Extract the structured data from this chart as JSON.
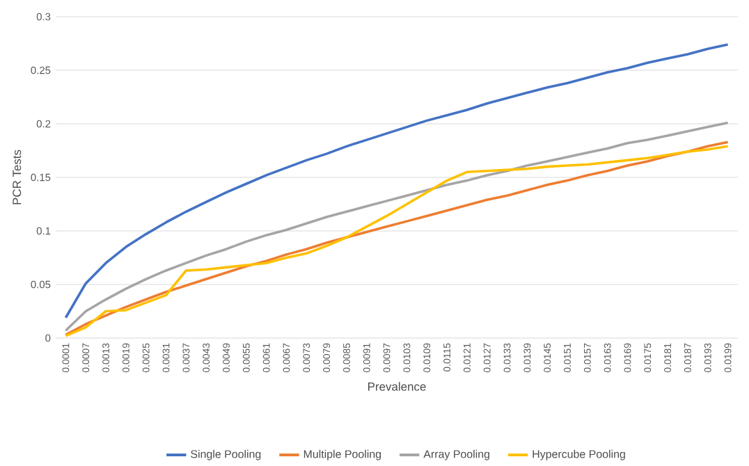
{
  "chart_data": {
    "type": "line",
    "xlabel": "Prevalence",
    "ylabel": "PCR Tests",
    "categories": [
      "0.0001",
      "0.0007",
      "0.0013",
      "0.0019",
      "0.0025",
      "0.0031",
      "0.0037",
      "0.0043",
      "0.0049",
      "0.0055",
      "0.0061",
      "0.0067",
      "0.0073",
      "0.0079",
      "0.0085",
      "0.0091",
      "0.0097",
      "0.0103",
      "0.0109",
      "0.0115",
      "0.0121",
      "0.0127",
      "0.0133",
      "0.0139",
      "0.0145",
      "0.0151",
      "0.0157",
      "0.0163",
      "0.0169",
      "0.0175",
      "0.0181",
      "0.0187",
      "0.0193",
      "0.0199"
    ],
    "series": [
      {
        "name": "Single Pooling",
        "color": "#4472c4",
        "values": [
          0.019,
          0.051,
          0.07,
          0.085,
          0.097,
          0.108,
          0.118,
          0.127,
          0.136,
          0.144,
          0.152,
          0.159,
          0.166,
          0.172,
          0.179,
          0.185,
          0.191,
          0.197,
          0.203,
          0.208,
          0.213,
          0.219,
          0.224,
          0.229,
          0.234,
          0.238,
          0.243,
          0.248,
          0.252,
          0.257,
          0.261,
          0.265,
          0.27,
          0.274
        ]
      },
      {
        "name": "Multiple Pooling",
        "color": "#ed7d31",
        "values": [
          0.003,
          0.013,
          0.021,
          0.029,
          0.036,
          0.043,
          0.049,
          0.055,
          0.061,
          0.067,
          0.072,
          0.078,
          0.083,
          0.089,
          0.094,
          0.099,
          0.104,
          0.109,
          0.114,
          0.119,
          0.124,
          0.129,
          0.133,
          0.138,
          0.143,
          0.147,
          0.152,
          0.156,
          0.161,
          0.165,
          0.17,
          0.174,
          0.179,
          0.183
        ]
      },
      {
        "name": "Array Pooling",
        "color": "#a5a5a5",
        "values": [
          0.007,
          0.025,
          0.036,
          0.046,
          0.055,
          0.063,
          0.07,
          0.077,
          0.083,
          0.09,
          0.096,
          0.101,
          0.107,
          0.113,
          0.118,
          0.123,
          0.128,
          0.133,
          0.138,
          0.143,
          0.147,
          0.152,
          0.156,
          0.161,
          0.165,
          0.169,
          0.173,
          0.177,
          0.182,
          0.185,
          0.189,
          0.193,
          0.197,
          0.201
        ]
      },
      {
        "name": "Hypercube Pooling",
        "color": "#ffc000",
        "values": [
          0.002,
          0.01,
          0.025,
          0.026,
          0.033,
          0.04,
          0.063,
          0.064,
          0.066,
          0.068,
          0.07,
          0.075,
          0.079,
          0.086,
          0.094,
          0.104,
          0.114,
          0.125,
          0.136,
          0.147,
          0.155,
          0.156,
          0.157,
          0.158,
          0.16,
          0.161,
          0.162,
          0.164,
          0.166,
          0.168,
          0.171,
          0.174,
          0.176,
          0.179
        ]
      }
    ],
    "ylim": [
      0,
      0.3
    ],
    "yticks": [
      0,
      0.05,
      0.1,
      0.15,
      0.2,
      0.25,
      0.3
    ],
    "grid": "y",
    "legend": "bottom",
    "marker": "none",
    "line_style": "solid"
  }
}
